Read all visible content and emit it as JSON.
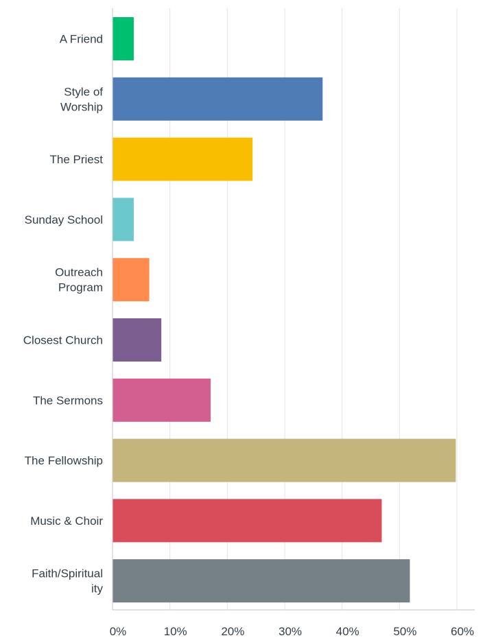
{
  "chart_data": {
    "type": "bar",
    "orientation": "horizontal",
    "title": "",
    "xlabel": "",
    "ylabel": "",
    "categories": [
      "A Friend",
      "Style of Worship",
      "The Priest",
      "Sunday School",
      "Outreach Program",
      "Closest Church",
      "The Sermons",
      "The Fellowship",
      "Music & Choir",
      "Faith/Spirituality"
    ],
    "category_label_lines": [
      [
        "A Friend"
      ],
      [
        "Style of",
        "Worship"
      ],
      [
        "The Priest"
      ],
      [
        "Sunday School"
      ],
      [
        "Outreach",
        "Program"
      ],
      [
        "Closest Church"
      ],
      [
        "The Sermons"
      ],
      [
        "The Fellowship"
      ],
      [
        "Music & Choir"
      ],
      [
        "Faith/Spiritual",
        "ity"
      ]
    ],
    "values": [
      3.7,
      36.6,
      24.4,
      3.7,
      6.4,
      8.5,
      17.1,
      59.8,
      46.9,
      51.8
    ],
    "unit": "%",
    "xlim": [
      0,
      60
    ],
    "xticks": [
      0,
      10,
      20,
      30,
      40,
      50,
      60
    ],
    "xtick_labels": [
      "0%",
      "10%",
      "20%",
      "30%",
      "40%",
      "50%",
      "60%"
    ],
    "grid": true,
    "legend": "none",
    "colors": [
      "#00bf6f",
      "#507cb6",
      "#f9be00",
      "#6bc8cd",
      "#ff8b4f",
      "#7d5e90",
      "#d25f90",
      "#c4b57b",
      "#d94d5b",
      "#768087"
    ]
  }
}
